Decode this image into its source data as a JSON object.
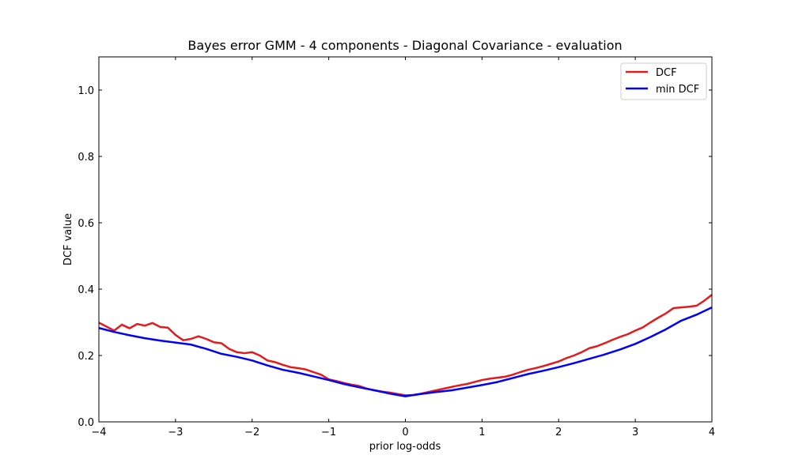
{
  "chart_data": {
    "type": "line",
    "title": "Bayes error GMM - 4 components - Diagonal Covariance - evaluation",
    "xlabel": "prior log-odds",
    "ylabel": "DCF value",
    "xlim": [
      -4,
      4
    ],
    "ylim": [
      0,
      1.1
    ],
    "xticks": [
      -4,
      -3,
      -2,
      -1,
      0,
      1,
      2,
      3,
      4
    ],
    "xtick_labels": [
      "−4",
      "−3",
      "−2",
      "−1",
      "0",
      "1",
      "2",
      "3",
      "4"
    ],
    "yticks": [
      0,
      0.2,
      0.4,
      0.6,
      0.8,
      1.0
    ],
    "ytick_labels": [
      "0.0",
      "0.2",
      "0.4",
      "0.6",
      "0.8",
      "1.0"
    ],
    "grid": false,
    "legend_position": "top-right",
    "series": [
      {
        "name": "DCF",
        "color": "#e41a1c",
        "x": [
          -4.0,
          -3.9,
          -3.8,
          -3.7,
          -3.6,
          -3.5,
          -3.4,
          -3.3,
          -3.2,
          -3.1,
          -3.0,
          -2.9,
          -2.8,
          -2.7,
          -2.6,
          -2.5,
          -2.4,
          -2.3,
          -2.2,
          -2.1,
          -2.0,
          -1.9,
          -1.8,
          -1.7,
          -1.6,
          -1.5,
          -1.4,
          -1.3,
          -1.2,
          -1.1,
          -1.0,
          -0.9,
          -0.8,
          -0.7,
          -0.6,
          -0.5,
          -0.4,
          -0.3,
          -0.2,
          -0.1,
          0.0,
          0.1,
          0.2,
          0.3,
          0.4,
          0.5,
          0.6,
          0.7,
          0.8,
          0.9,
          1.0,
          1.1,
          1.2,
          1.3,
          1.4,
          1.5,
          1.6,
          1.7,
          1.8,
          1.9,
          2.0,
          2.1,
          2.2,
          2.3,
          2.4,
          2.5,
          2.6,
          2.7,
          2.8,
          2.9,
          3.0,
          3.1,
          3.2,
          3.3,
          3.4,
          3.5,
          3.6,
          3.7,
          3.8,
          3.9,
          4.0
        ],
        "y": [
          0.299,
          0.287,
          0.275,
          0.293,
          0.282,
          0.295,
          0.29,
          0.298,
          0.286,
          0.284,
          0.262,
          0.246,
          0.25,
          0.258,
          0.25,
          0.24,
          0.237,
          0.22,
          0.21,
          0.207,
          0.21,
          0.2,
          0.185,
          0.18,
          0.172,
          0.165,
          0.162,
          0.158,
          0.15,
          0.142,
          0.128,
          0.123,
          0.117,
          0.112,
          0.108,
          0.1,
          0.095,
          0.091,
          0.088,
          0.084,
          0.08,
          0.081,
          0.085,
          0.09,
          0.095,
          0.1,
          0.105,
          0.11,
          0.114,
          0.12,
          0.126,
          0.13,
          0.133,
          0.136,
          0.142,
          0.15,
          0.157,
          0.162,
          0.168,
          0.175,
          0.182,
          0.192,
          0.2,
          0.21,
          0.222,
          0.228,
          0.237,
          0.247,
          0.256,
          0.264,
          0.275,
          0.285,
          0.3,
          0.314,
          0.327,
          0.343,
          0.345,
          0.347,
          0.35,
          0.365,
          0.383
        ]
      },
      {
        "name": "min DCF",
        "color": "#0000ff",
        "x": [
          -4.0,
          -3.8,
          -3.6,
          -3.4,
          -3.2,
          -3.0,
          -2.8,
          -2.6,
          -2.4,
          -2.2,
          -2.0,
          -1.8,
          -1.6,
          -1.4,
          -1.2,
          -1.0,
          -0.8,
          -0.6,
          -0.4,
          -0.2,
          0.0,
          0.2,
          0.4,
          0.6,
          0.8,
          1.0,
          1.2,
          1.4,
          1.6,
          1.8,
          2.0,
          2.2,
          2.4,
          2.6,
          2.8,
          3.0,
          3.2,
          3.4,
          3.6,
          3.8,
          4.0
        ],
        "y": [
          0.283,
          0.271,
          0.261,
          0.252,
          0.245,
          0.239,
          0.233,
          0.22,
          0.205,
          0.196,
          0.185,
          0.17,
          0.157,
          0.148,
          0.137,
          0.126,
          0.114,
          0.104,
          0.095,
          0.085,
          0.077,
          0.084,
          0.09,
          0.095,
          0.103,
          0.111,
          0.12,
          0.132,
          0.144,
          0.154,
          0.165,
          0.177,
          0.19,
          0.203,
          0.218,
          0.235,
          0.256,
          0.279,
          0.305,
          0.323,
          0.345
        ]
      }
    ]
  }
}
